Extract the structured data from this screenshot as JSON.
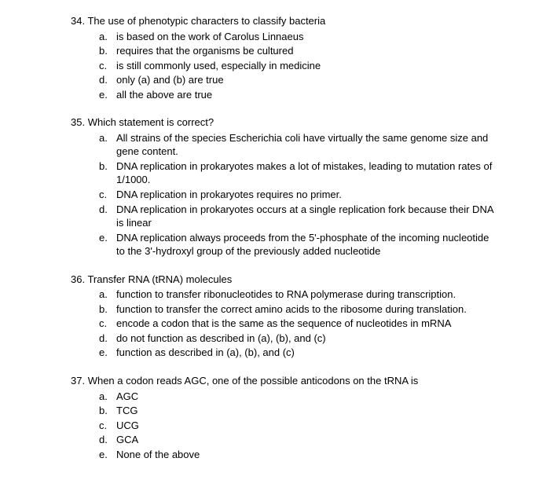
{
  "questions": [
    {
      "number": "34.",
      "text": "The use of phenotypic characters to classify bacteria",
      "options": [
        {
          "letter": "a.",
          "text": "is based on the work of Carolus Linnaeus"
        },
        {
          "letter": "b.",
          "text": "requires that the organisms be cultured"
        },
        {
          "letter": "c.",
          "text": "is still commonly used, especially in medicine"
        },
        {
          "letter": "d.",
          "text": "only (a) and (b) are true"
        },
        {
          "letter": "e.",
          "text": "all the above are true"
        }
      ]
    },
    {
      "number": "35.",
      "text": "Which statement is correct?",
      "options": [
        {
          "letter": "a.",
          "text": "All strains of the species Escherichia coli have virtually the same genome size and gene content."
        },
        {
          "letter": "b.",
          "text": "DNA replication in prokaryotes makes a lot of mistakes, leading to mutation rates of 1/1000."
        },
        {
          "letter": "c.",
          "text": "DNA replication in prokaryotes requires no primer."
        },
        {
          "letter": "d.",
          "text": "DNA replication in prokaryotes occurs at a single replication fork because their DNA is linear"
        },
        {
          "letter": "e.",
          "text": "DNA replication always proceeds from the 5'-phosphate of the incoming nucleotide to the 3'-hydroxyl group of the previously added nucleotide"
        }
      ]
    },
    {
      "number": "36.",
      "text": "Transfer RNA (tRNA) molecules",
      "options": [
        {
          "letter": "a.",
          "text": "function to transfer ribonucleotides to RNA polymerase during transcription."
        },
        {
          "letter": "b.",
          "text": "function to transfer the correct amino acids to the ribosome during translation."
        },
        {
          "letter": "c.",
          "text": "encode a codon that is the same as the sequence of nucleotides in mRNA"
        },
        {
          "letter": "d.",
          "text": "do not function as described in (a), (b), and (c)"
        },
        {
          "letter": "e.",
          "text": "function as described in (a), (b), and (c)"
        }
      ]
    },
    {
      "number": "37.",
      "text": "When a codon reads AGC, one of the possible anticodons on the tRNA is",
      "options": [
        {
          "letter": "a.",
          "text": "AGC"
        },
        {
          "letter": "b.",
          "text": "TCG"
        },
        {
          "letter": "c.",
          "text": "UCG"
        },
        {
          "letter": "d.",
          "text": "GCA"
        },
        {
          "letter": "e.",
          "text": "None of the above"
        }
      ]
    }
  ]
}
